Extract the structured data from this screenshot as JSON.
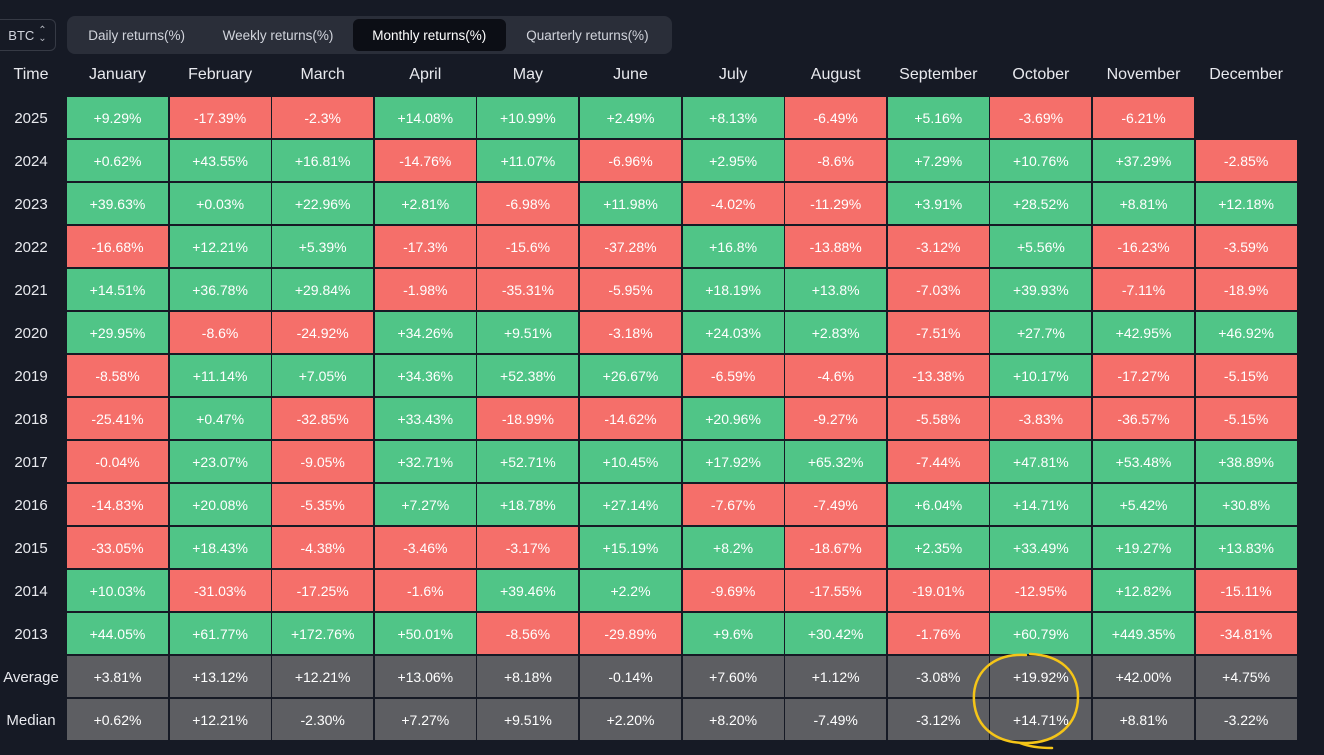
{
  "asset_selector": {
    "value": "BTC",
    "icon": "updown-chevron-icon"
  },
  "tabs": [
    {
      "label": "Daily returns(%)",
      "active": false
    },
    {
      "label": "Weekly returns(%)",
      "active": false
    },
    {
      "label": "Monthly returns(%)",
      "active": true
    },
    {
      "label": "Quarterly returns(%)",
      "active": false
    }
  ],
  "colors": {
    "positive": "#50c587",
    "negative": "#f56f6a",
    "stat": "#5d5e62",
    "highlight": "#f5c518"
  },
  "table": {
    "time_header": "Time",
    "months": [
      "January",
      "February",
      "March",
      "April",
      "May",
      "June",
      "July",
      "August",
      "September",
      "October",
      "November",
      "December"
    ],
    "rows": [
      {
        "year": "2025",
        "values": [
          "+9.29%",
          "-17.39%",
          "-2.3%",
          "+14.08%",
          "+10.99%",
          "+2.49%",
          "+8.13%",
          "-6.49%",
          "+5.16%",
          "-3.69%",
          "-6.21%",
          ""
        ]
      },
      {
        "year": "2024",
        "values": [
          "+0.62%",
          "+43.55%",
          "+16.81%",
          "-14.76%",
          "+11.07%",
          "-6.96%",
          "+2.95%",
          "-8.6%",
          "+7.29%",
          "+10.76%",
          "+37.29%",
          "-2.85%"
        ]
      },
      {
        "year": "2023",
        "values": [
          "+39.63%",
          "+0.03%",
          "+22.96%",
          "+2.81%",
          "-6.98%",
          "+11.98%",
          "-4.02%",
          "-11.29%",
          "+3.91%",
          "+28.52%",
          "+8.81%",
          "+12.18%"
        ]
      },
      {
        "year": "2022",
        "values": [
          "-16.68%",
          "+12.21%",
          "+5.39%",
          "-17.3%",
          "-15.6%",
          "-37.28%",
          "+16.8%",
          "-13.88%",
          "-3.12%",
          "+5.56%",
          "-16.23%",
          "-3.59%"
        ]
      },
      {
        "year": "2021",
        "values": [
          "+14.51%",
          "+36.78%",
          "+29.84%",
          "-1.98%",
          "-35.31%",
          "-5.95%",
          "+18.19%",
          "+13.8%",
          "-7.03%",
          "+39.93%",
          "-7.11%",
          "-18.9%"
        ]
      },
      {
        "year": "2020",
        "values": [
          "+29.95%",
          "-8.6%",
          "-24.92%",
          "+34.26%",
          "+9.51%",
          "-3.18%",
          "+24.03%",
          "+2.83%",
          "-7.51%",
          "+27.7%",
          "+42.95%",
          "+46.92%"
        ]
      },
      {
        "year": "2019",
        "values": [
          "-8.58%",
          "+11.14%",
          "+7.05%",
          "+34.36%",
          "+52.38%",
          "+26.67%",
          "-6.59%",
          "-4.6%",
          "-13.38%",
          "+10.17%",
          "-17.27%",
          "-5.15%"
        ]
      },
      {
        "year": "2018",
        "values": [
          "-25.41%",
          "+0.47%",
          "-32.85%",
          "+33.43%",
          "-18.99%",
          "-14.62%",
          "+20.96%",
          "-9.27%",
          "-5.58%",
          "-3.83%",
          "-36.57%",
          "-5.15%"
        ]
      },
      {
        "year": "2017",
        "values": [
          "-0.04%",
          "+23.07%",
          "-9.05%",
          "+32.71%",
          "+52.71%",
          "+10.45%",
          "+17.92%",
          "+65.32%",
          "-7.44%",
          "+47.81%",
          "+53.48%",
          "+38.89%"
        ]
      },
      {
        "year": "2016",
        "values": [
          "-14.83%",
          "+20.08%",
          "-5.35%",
          "+7.27%",
          "+18.78%",
          "+27.14%",
          "-7.67%",
          "-7.49%",
          "+6.04%",
          "+14.71%",
          "+5.42%",
          "+30.8%"
        ]
      },
      {
        "year": "2015",
        "values": [
          "-33.05%",
          "+18.43%",
          "-4.38%",
          "-3.46%",
          "-3.17%",
          "+15.19%",
          "+8.2%",
          "-18.67%",
          "+2.35%",
          "+33.49%",
          "+19.27%",
          "+13.83%"
        ]
      },
      {
        "year": "2014",
        "values": [
          "+10.03%",
          "-31.03%",
          "-17.25%",
          "-1.6%",
          "+39.46%",
          "+2.2%",
          "-9.69%",
          "-17.55%",
          "-19.01%",
          "-12.95%",
          "+12.82%",
          "-15.11%"
        ]
      },
      {
        "year": "2013",
        "values": [
          "+44.05%",
          "+61.77%",
          "+172.76%",
          "+50.01%",
          "-8.56%",
          "-29.89%",
          "+9.6%",
          "+30.42%",
          "-1.76%",
          "+60.79%",
          "+449.35%",
          "-34.81%"
        ]
      }
    ],
    "stats": [
      {
        "label": "Average",
        "values": [
          "+3.81%",
          "+13.12%",
          "+12.21%",
          "+13.06%",
          "+8.18%",
          "-0.14%",
          "+7.60%",
          "+1.12%",
          "-3.08%",
          "+19.92%",
          "+42.00%",
          "+4.75%"
        ]
      },
      {
        "label": "Median",
        "values": [
          "+0.62%",
          "+12.21%",
          "-2.30%",
          "+7.27%",
          "+9.51%",
          "+2.20%",
          "+8.20%",
          "-7.49%",
          "-3.12%",
          "+14.71%",
          "+8.81%",
          "-3.22%"
        ]
      }
    ]
  }
}
